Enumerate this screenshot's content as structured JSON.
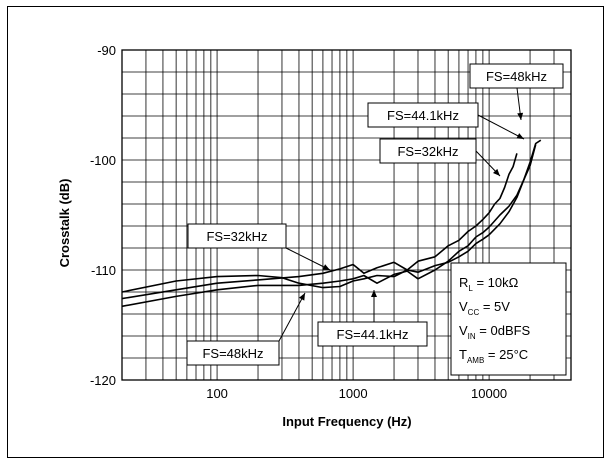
{
  "chart_data": {
    "type": "line",
    "title": "",
    "xlabel": "Input Frequency (Hz)",
    "ylabel": "Crosstalk (dB)",
    "xscale": "log",
    "xlim": [
      20,
      40000
    ],
    "ylim": [
      -120,
      -90
    ],
    "grid": true,
    "x_ticks": [
      {
        "value": 100,
        "label": "100"
      },
      {
        "value": 1000,
        "label": "1000"
      },
      {
        "value": 10000,
        "label": "10000"
      }
    ],
    "y_ticks": [
      {
        "value": -90,
        "label": "-90"
      },
      {
        "value": -100,
        "label": "-100"
      },
      {
        "value": -110,
        "label": "-110"
      },
      {
        "value": -120,
        "label": "-120"
      }
    ],
    "series": [
      {
        "name": "FS=32kHz",
        "x": [
          20,
          50,
          100,
          200,
          400,
          600,
          800,
          1000,
          1200,
          1500,
          2000,
          2500,
          3000,
          4000,
          5000,
          6000,
          7000,
          8000,
          9000,
          10000,
          11000,
          12000,
          13000,
          14000,
          15000,
          16000
        ],
        "y": [
          -112.6,
          -111.8,
          -111.2,
          -110.9,
          -110.6,
          -110.3,
          -109.9,
          -109.5,
          -110.3,
          -109.8,
          -109.3,
          -110.0,
          -109.2,
          -108.8,
          -107.8,
          -107.3,
          -106.5,
          -106.0,
          -105.4,
          -104.8,
          -104.0,
          -103.5,
          -102.5,
          -101.3,
          -100.6,
          -99.4
        ]
      },
      {
        "name": "FS=44.1kHz",
        "x": [
          20,
          50,
          100,
          200,
          400,
          600,
          800,
          1000,
          1200,
          1500,
          2000,
          2500,
          3000,
          4000,
          5000,
          6000,
          7000,
          8000,
          9000,
          10000,
          12000,
          14000,
          16000,
          18000,
          20000,
          22000
        ],
        "y": [
          -113.3,
          -112.4,
          -111.8,
          -111.4,
          -111.4,
          -111.2,
          -111.0,
          -110.8,
          -110.5,
          -111.2,
          -110.4,
          -110.1,
          -110.8,
          -110.0,
          -109.2,
          -108.3,
          -107.8,
          -107.0,
          -106.6,
          -106.1,
          -105.0,
          -104.2,
          -103.2,
          -101.8,
          -100.5,
          -98.6
        ]
      },
      {
        "name": "FS=48kHz",
        "x": [
          20,
          50,
          100,
          200,
          300,
          400,
          600,
          800,
          1000,
          1200,
          1500,
          2000,
          2500,
          3000,
          4000,
          5000,
          6000,
          7000,
          8000,
          9000,
          10000,
          12000,
          14000,
          16000,
          18000,
          20000,
          22000,
          24000
        ],
        "y": [
          -112.0,
          -111.0,
          -110.6,
          -110.5,
          -110.7,
          -111.2,
          -111.6,
          -111.5,
          -111.0,
          -110.8,
          -110.5,
          -110.6,
          -110.0,
          -110.2,
          -109.6,
          -109.3,
          -108.8,
          -108.3,
          -107.6,
          -107.2,
          -106.8,
          -105.8,
          -104.7,
          -103.4,
          -101.8,
          -100.2,
          -98.5,
          -98.2
        ]
      }
    ],
    "annotations": {
      "low_32": "FS=32kHz",
      "low_48": "FS=48kHz",
      "low_441": "FS=44.1kHz",
      "high_48": "FS=48kHz",
      "high_441": "FS=44.1kHz",
      "high_32": "FS=32kHz"
    },
    "conditions": {
      "rl_main": "R",
      "rl_sub": "L",
      "rl_val": " = 10kΩ",
      "vcc_main": "V",
      "vcc_sub": "CC",
      "vcc_val": " = 5V",
      "vin_main": "V",
      "vin_sub": "IN",
      "vin_val": " = 0dBFS",
      "tamb_main": "T",
      "tamb_sub": "AMB",
      "tamb_val": " = 25°C"
    }
  }
}
